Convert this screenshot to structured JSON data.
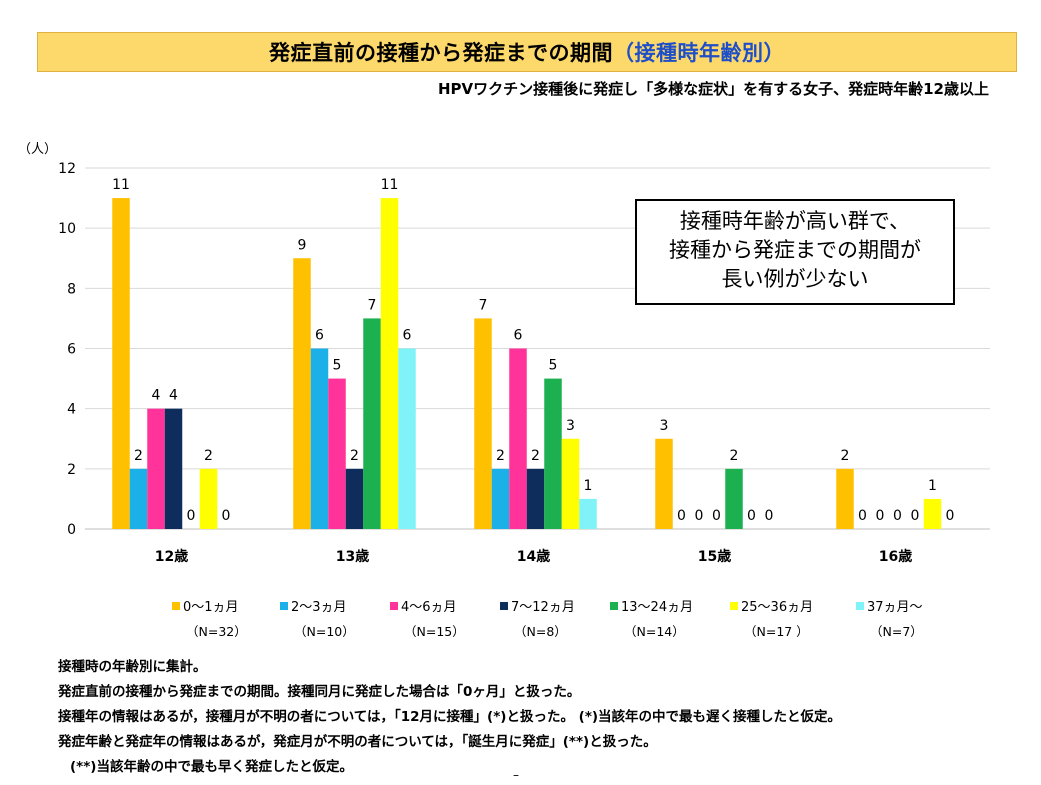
{
  "title": {
    "main": "発症直前の接種から発症までの期間",
    "accent": "（接種時年齢別）"
  },
  "subtitle": "HPVワクチン接種後に発症し「多様な症状」を有する女子、発症時年齢12歳以上",
  "colors": {
    "banner_bg": "#fdd96b",
    "title_accent": "#1f4fc8"
  },
  "callout": {
    "lines": [
      "接種時年齢が高い群で、",
      "接種から発症までの期間が",
      "長い例が少ない"
    ]
  },
  "chart_data": {
    "type": "bar",
    "ylabel": "（人）",
    "ylim": [
      0,
      12
    ],
    "yticks": [
      0,
      2,
      4,
      6,
      8,
      10,
      12
    ],
    "grid": true,
    "legend_position": "bottom",
    "categories": [
      "12歳",
      "13歳",
      "14歳",
      "15歳",
      "16歳"
    ],
    "series": [
      {
        "name": "0～1ヵ月",
        "n": "（N=32）",
        "color": "#ffc000",
        "values": [
          11,
          9,
          7,
          3,
          2
        ]
      },
      {
        "name": "2～3ヵ月",
        "n": "（N=10）",
        "color": "#1cb0e8",
        "values": [
          2,
          6,
          2,
          0,
          0
        ]
      },
      {
        "name": "4～6ヵ月",
        "n": "（N=15）",
        "color": "#ff3399",
        "values": [
          4,
          5,
          6,
          0,
          0
        ]
      },
      {
        "name": "7～12ヵ月",
        "n": "（N=8）",
        "color": "#0f2d5c",
        "values": [
          4,
          2,
          2,
          0,
          0
        ]
      },
      {
        "name": "13～24ヵ月",
        "n": "（N=14）",
        "color": "#1db050",
        "values": [
          0,
          7,
          5,
          2,
          0
        ]
      },
      {
        "name": "25～36ヵ月",
        "n": "（N=17 ）",
        "color": "#ffff00",
        "values": [
          2,
          11,
          3,
          0,
          1
        ]
      },
      {
        "name": "37ヵ月～",
        "n": "（N=7）",
        "color": "#7ff3f7",
        "values": [
          0,
          6,
          1,
          0,
          0
        ]
      }
    ],
    "value_labels": [
      [
        "11",
        "2",
        "4",
        "4",
        null,
        "2",
        "0"
      ],
      [
        "9",
        "6",
        "5",
        "2",
        "7",
        "11",
        "6"
      ],
      [
        "7",
        "2",
        "6",
        "2",
        "5",
        "3",
        "1"
      ],
      [
        "3",
        "0",
        "0",
        "0",
        "2",
        "0",
        "0"
      ],
      [
        "2",
        "0",
        "0",
        "0",
        "0",
        "1",
        "0"
      ]
    ],
    "extra_labels": [
      "0"
    ]
  },
  "footnotes": [
    "接種時の年齢別に集計。",
    "発症直前の接種から発症までの期間。接種同月に発症した場合は「0ヶ月」と扱った。",
    "接種年の情報はあるが，接種月が不明の者については，「12月に接種」(*)と扱った。 (*)当該年の中で最も遅く接種したと仮定。",
    "発症年齢と発症年の情報はあるが，発症月が不明の者については，「誕生月に発症」(**)と扱った。",
    "(**)当該年齢の中で最も早く発症したと仮定。"
  ],
  "page_mark": "–"
}
